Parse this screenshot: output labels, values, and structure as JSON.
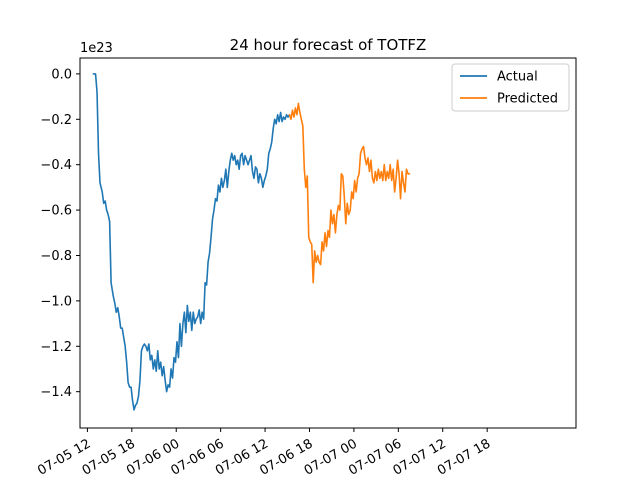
{
  "chart_data": {
    "type": "line",
    "title": "24 hour forecast of TOTFZ",
    "xlabel": "",
    "ylabel": "",
    "y_offset_label": "1e23",
    "y_unit_scale": 1e+23,
    "x_unit": "hours from 07-05 12",
    "xlim": [
      -1,
      66
    ],
    "ylim": [
      -1.56,
      0.07
    ],
    "grid": false,
    "legend_position": "top-right",
    "x_ticks": [
      {
        "x": 0,
        "label": "07-05 12"
      },
      {
        "x": 6,
        "label": "07-05 18"
      },
      {
        "x": 12,
        "label": "07-06 00"
      },
      {
        "x": 18,
        "label": "07-06 06"
      },
      {
        "x": 24,
        "label": "07-06 12"
      },
      {
        "x": 30,
        "label": "07-06 18"
      },
      {
        "x": 36,
        "label": "07-07 00"
      },
      {
        "x": 42,
        "label": "07-07 06"
      },
      {
        "x": 48,
        "label": "07-07 12"
      },
      {
        "x": 54,
        "label": "07-07 18"
      }
    ],
    "y_ticks": [
      0.0,
      -0.2,
      -0.4,
      -0.6,
      -0.8,
      -1.0,
      -1.2,
      -1.4
    ],
    "y_tick_labels": [
      "0.0",
      "−0.2",
      "−0.4",
      "−0.6",
      "−0.8",
      "−1.0",
      "−1.2",
      "−1.4"
    ],
    "series": [
      {
        "name": "Actual",
        "color": "#1f77b4",
        "points": [
          [
            0.8,
            0.0
          ],
          [
            1.1,
            0.0
          ],
          [
            1.3,
            -0.08
          ],
          [
            1.5,
            -0.35
          ],
          [
            1.7,
            -0.48
          ],
          [
            2.0,
            -0.52
          ],
          [
            2.2,
            -0.57
          ],
          [
            2.4,
            -0.56
          ],
          [
            2.6,
            -0.6
          ],
          [
            2.8,
            -0.62
          ],
          [
            3.0,
            -0.65
          ],
          [
            3.2,
            -0.92
          ],
          [
            3.5,
            -0.98
          ],
          [
            3.7,
            -1.01
          ],
          [
            3.9,
            -1.05
          ],
          [
            4.1,
            -1.03
          ],
          [
            4.3,
            -1.07
          ],
          [
            4.5,
            -1.12
          ],
          [
            4.7,
            -1.12
          ],
          [
            4.9,
            -1.16
          ],
          [
            5.1,
            -1.2
          ],
          [
            5.3,
            -1.27
          ],
          [
            5.5,
            -1.36
          ],
          [
            5.7,
            -1.38
          ],
          [
            5.9,
            -1.38
          ],
          [
            6.1,
            -1.44
          ],
          [
            6.3,
            -1.48
          ],
          [
            6.5,
            -1.46
          ],
          [
            6.7,
            -1.45
          ],
          [
            6.9,
            -1.42
          ],
          [
            7.1,
            -1.35
          ],
          [
            7.3,
            -1.22
          ],
          [
            7.5,
            -1.2
          ],
          [
            7.7,
            -1.19
          ],
          [
            7.9,
            -1.2
          ],
          [
            8.1,
            -1.22
          ],
          [
            8.3,
            -1.19
          ],
          [
            8.5,
            -1.26
          ],
          [
            8.7,
            -1.24
          ],
          [
            8.9,
            -1.3
          ],
          [
            9.1,
            -1.26
          ],
          [
            9.3,
            -1.31
          ],
          [
            9.5,
            -1.22
          ],
          [
            9.7,
            -1.3
          ],
          [
            9.9,
            -1.27
          ],
          [
            10.1,
            -1.33
          ],
          [
            10.3,
            -1.29
          ],
          [
            10.5,
            -1.35
          ],
          [
            10.7,
            -1.4
          ],
          [
            10.9,
            -1.37
          ],
          [
            11.1,
            -1.38
          ],
          [
            11.3,
            -1.3
          ],
          [
            11.5,
            -1.34
          ],
          [
            11.7,
            -1.25
          ],
          [
            11.9,
            -1.27
          ],
          [
            12.1,
            -1.18
          ],
          [
            12.3,
            -1.25
          ],
          [
            12.5,
            -1.1
          ],
          [
            12.7,
            -1.2
          ],
          [
            12.9,
            -1.1
          ],
          [
            13.1,
            -1.05
          ],
          [
            13.3,
            -1.14
          ],
          [
            13.5,
            -1.02
          ],
          [
            13.7,
            -1.09
          ],
          [
            13.9,
            -1.05
          ],
          [
            14.1,
            -1.13
          ],
          [
            14.3,
            -1.05
          ],
          [
            14.5,
            -1.1
          ],
          [
            14.7,
            -1.08
          ],
          [
            14.9,
            -1.07
          ],
          [
            15.1,
            -1.04
          ],
          [
            15.3,
            -1.1
          ],
          [
            15.5,
            -1.05
          ],
          [
            15.7,
            -1.08
          ],
          [
            15.9,
            -0.92
          ],
          [
            16.1,
            -0.93
          ],
          [
            16.3,
            -0.83
          ],
          [
            16.5,
            -0.79
          ],
          [
            16.7,
            -0.72
          ],
          [
            16.9,
            -0.64
          ],
          [
            17.1,
            -0.6
          ],
          [
            17.3,
            -0.55
          ],
          [
            17.5,
            -0.56
          ],
          [
            17.7,
            -0.49
          ],
          [
            17.9,
            -0.52
          ],
          [
            18.1,
            -0.46
          ],
          [
            18.3,
            -0.5
          ],
          [
            18.5,
            -0.47
          ],
          [
            18.7,
            -0.42
          ],
          [
            18.9,
            -0.5
          ],
          [
            19.1,
            -0.43
          ],
          [
            19.3,
            -0.38
          ],
          [
            19.5,
            -0.35
          ],
          [
            19.7,
            -0.38
          ],
          [
            19.9,
            -0.36
          ],
          [
            20.1,
            -0.4
          ],
          [
            20.3,
            -0.38
          ],
          [
            20.5,
            -0.42
          ],
          [
            20.7,
            -0.36
          ],
          [
            20.9,
            -0.35
          ],
          [
            21.1,
            -0.4
          ],
          [
            21.3,
            -0.36
          ],
          [
            21.5,
            -0.38
          ],
          [
            21.7,
            -0.4
          ],
          [
            21.9,
            -0.38
          ],
          [
            22.1,
            -0.36
          ],
          [
            22.3,
            -0.43
          ],
          [
            22.5,
            -0.46
          ],
          [
            22.7,
            -0.41
          ],
          [
            22.9,
            -0.42
          ],
          [
            23.1,
            -0.48
          ],
          [
            23.3,
            -0.44
          ],
          [
            23.5,
            -0.46
          ],
          [
            23.7,
            -0.5
          ],
          [
            23.9,
            -0.47
          ],
          [
            24.1,
            -0.45
          ],
          [
            24.3,
            -0.42
          ],
          [
            24.5,
            -0.35
          ],
          [
            24.7,
            -0.33
          ],
          [
            24.9,
            -0.3
          ],
          [
            25.1,
            -0.24
          ],
          [
            25.3,
            -0.2
          ],
          [
            25.5,
            -0.22
          ],
          [
            25.7,
            -0.18
          ],
          [
            25.9,
            -0.21
          ],
          [
            26.1,
            -0.17
          ],
          [
            26.3,
            -0.21
          ],
          [
            26.5,
            -0.19
          ],
          [
            26.7,
            -0.2
          ],
          [
            26.9,
            -0.18
          ],
          [
            27.1,
            -0.19
          ],
          [
            27.3,
            -0.18
          ]
        ]
      },
      {
        "name": "Predicted",
        "color": "#ff7f0e",
        "points": [
          [
            27.3,
            -0.18
          ],
          [
            27.5,
            -0.2
          ],
          [
            27.7,
            -0.16
          ],
          [
            27.9,
            -0.19
          ],
          [
            28.1,
            -0.15
          ],
          [
            28.3,
            -0.18
          ],
          [
            28.5,
            -0.13
          ],
          [
            28.7,
            -0.17
          ],
          [
            28.9,
            -0.2
          ],
          [
            29.1,
            -0.23
          ],
          [
            29.3,
            -0.42
          ],
          [
            29.5,
            -0.5
          ],
          [
            29.7,
            -0.45
          ],
          [
            29.9,
            -0.72
          ],
          [
            30.1,
            -0.74
          ],
          [
            30.3,
            -0.75
          ],
          [
            30.5,
            -0.92
          ],
          [
            30.7,
            -0.78
          ],
          [
            30.9,
            -0.83
          ],
          [
            31.1,
            -0.8
          ],
          [
            31.3,
            -0.83
          ],
          [
            31.5,
            -0.84
          ],
          [
            31.7,
            -0.74
          ],
          [
            31.9,
            -0.78
          ],
          [
            32.1,
            -0.7
          ],
          [
            32.3,
            -0.76
          ],
          [
            32.5,
            -0.69
          ],
          [
            32.7,
            -0.72
          ],
          [
            32.9,
            -0.6
          ],
          [
            33.1,
            -0.66
          ],
          [
            33.3,
            -0.62
          ],
          [
            33.5,
            -0.7
          ],
          [
            33.7,
            -0.62
          ],
          [
            33.9,
            -0.58
          ],
          [
            34.1,
            -0.6
          ],
          [
            34.3,
            -0.44
          ],
          [
            34.5,
            -0.45
          ],
          [
            34.7,
            -0.54
          ],
          [
            34.9,
            -0.66
          ],
          [
            35.1,
            -0.57
          ],
          [
            35.3,
            -0.62
          ],
          [
            35.5,
            -0.6
          ],
          [
            35.7,
            -0.52
          ],
          [
            35.9,
            -0.55
          ],
          [
            36.1,
            -0.47
          ],
          [
            36.3,
            -0.52
          ],
          [
            36.5,
            -0.46
          ],
          [
            36.7,
            -0.44
          ],
          [
            36.9,
            -0.35
          ],
          [
            37.1,
            -0.33
          ],
          [
            37.3,
            -0.32
          ],
          [
            37.5,
            -0.37
          ],
          [
            37.7,
            -0.4
          ],
          [
            37.9,
            -0.37
          ],
          [
            38.1,
            -0.43
          ],
          [
            38.3,
            -0.38
          ],
          [
            38.5,
            -0.46
          ],
          [
            38.7,
            -0.48
          ],
          [
            38.9,
            -0.43
          ],
          [
            39.1,
            -0.47
          ],
          [
            39.3,
            -0.42
          ],
          [
            39.5,
            -0.46
          ],
          [
            39.7,
            -0.43
          ],
          [
            39.9,
            -0.47
          ],
          [
            40.1,
            -0.4
          ],
          [
            40.3,
            -0.47
          ],
          [
            40.5,
            -0.43
          ],
          [
            40.7,
            -0.46
          ],
          [
            40.9,
            -0.4
          ],
          [
            41.1,
            -0.47
          ],
          [
            41.3,
            -0.42
          ],
          [
            41.5,
            -0.52
          ],
          [
            41.7,
            -0.46
          ],
          [
            41.9,
            -0.38
          ],
          [
            42.1,
            -0.44
          ],
          [
            42.3,
            -0.55
          ],
          [
            42.5,
            -0.43
          ],
          [
            42.7,
            -0.48
          ],
          [
            42.9,
            -0.52
          ],
          [
            43.1,
            -0.42
          ],
          [
            43.3,
            -0.44
          ],
          [
            43.5,
            -0.44
          ]
        ]
      }
    ]
  }
}
